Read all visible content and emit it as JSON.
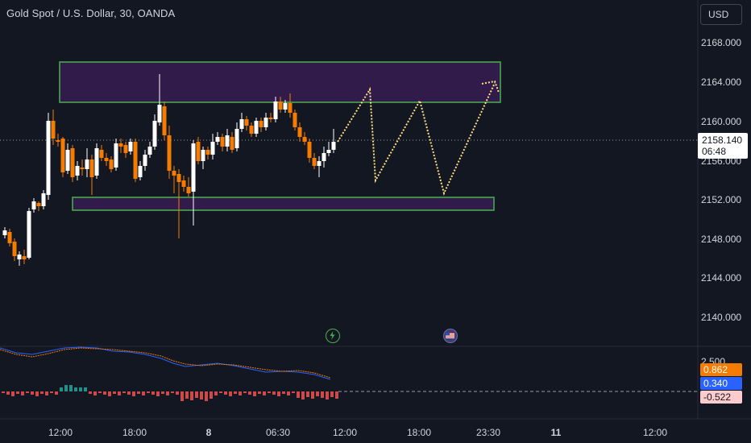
{
  "header": {
    "symbol_title": "Gold Spot / U.S. Dollar, 30, OANDA",
    "currency_button": "USD"
  },
  "price_axis": {
    "labels": [
      "2168.000",
      "2164.000",
      "2160.000",
      "2156.000",
      "2152.000",
      "2148.000",
      "2144.000",
      "2140.000"
    ],
    "last_price": "2158.140",
    "countdown": "06:48"
  },
  "indicator_panel": {
    "axis_label": "2.500",
    "badges": [
      {
        "value": "0.862",
        "color": "#f57c00",
        "text_color": "#ffffff"
      },
      {
        "value": "0.340",
        "color": "#2962ff",
        "text_color": "#ffffff"
      },
      {
        "value": "-0.522",
        "color": "#fccbcd",
        "text_color": "#131722"
      }
    ]
  },
  "time_axis": {
    "labels": [
      {
        "text": "12:00",
        "bold": false
      },
      {
        "text": "18:00",
        "bold": false
      },
      {
        "text": "8",
        "bold": true
      },
      {
        "text": "06:30",
        "bold": false
      },
      {
        "text": "12:00",
        "bold": false
      },
      {
        "text": "18:00",
        "bold": false
      },
      {
        "text": "23:30",
        "bold": false
      },
      {
        "text": "11",
        "bold": true
      },
      {
        "text": "12:00",
        "bold": false
      }
    ]
  },
  "colors": {
    "background": "#131722",
    "up_candle": "#ffffff",
    "down_candle": "#f57c00",
    "zone_fill": "#311b4b",
    "zone_border": "#4caf50",
    "projection": "#ffe082"
  },
  "events": [
    {
      "icon": "lightning-event-icon"
    },
    {
      "icon": "us-flag-event-icon"
    }
  ]
}
